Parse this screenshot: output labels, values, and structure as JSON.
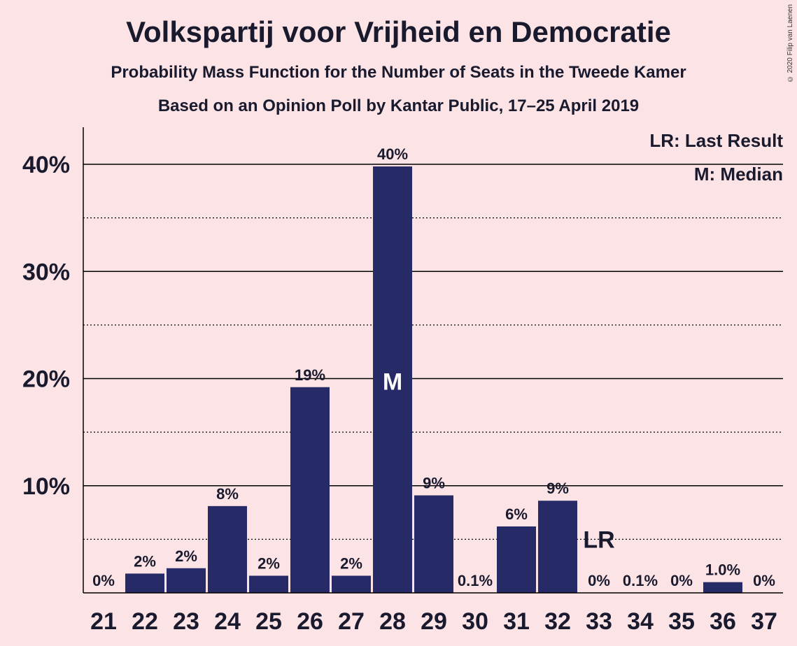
{
  "chart_data": {
    "type": "bar",
    "title": "Volkspartij voor Vrijheid en Democratie",
    "subtitle": "Probability Mass Function for the Number of Seats in the Tweede Kamer",
    "subtitle2": "Based on an Opinion Poll by Kantar Public, 17–25 April 2019",
    "copyright": "© 2020 Filip van Laenen",
    "categories": [
      "21",
      "22",
      "23",
      "24",
      "25",
      "26",
      "27",
      "28",
      "29",
      "30",
      "31",
      "32",
      "33",
      "34",
      "35",
      "36",
      "37"
    ],
    "values": [
      0,
      1.8,
      2.3,
      8.1,
      1.6,
      19.2,
      1.6,
      39.8,
      9.1,
      0.1,
      6.2,
      8.6,
      0,
      0.1,
      0,
      1.0,
      0
    ],
    "data_labels": [
      "0%",
      "2%",
      "2%",
      "8%",
      "2%",
      "19%",
      "2%",
      "40%",
      "9%",
      "0.1%",
      "6%",
      "9%",
      "0%",
      "0.1%",
      "0%",
      "1.0%",
      "0%"
    ],
    "ylim": [
      0,
      43
    ],
    "yticks": [
      10,
      20,
      30,
      40
    ],
    "ytick_labels": [
      "10%",
      "20%",
      "30%",
      "40%"
    ],
    "median_seat": "28",
    "median_label": "M",
    "last_result_seat": "33",
    "last_result_label": "LR",
    "legend": [
      "LR: Last Result",
      "M: Median"
    ],
    "legend_position": "top-right",
    "grid": "solid at 10% steps, dotted at 5% midpoints",
    "colors": {
      "bar": "#262a66",
      "background": "#fce4e6",
      "text": "#1a1a2e"
    }
  }
}
